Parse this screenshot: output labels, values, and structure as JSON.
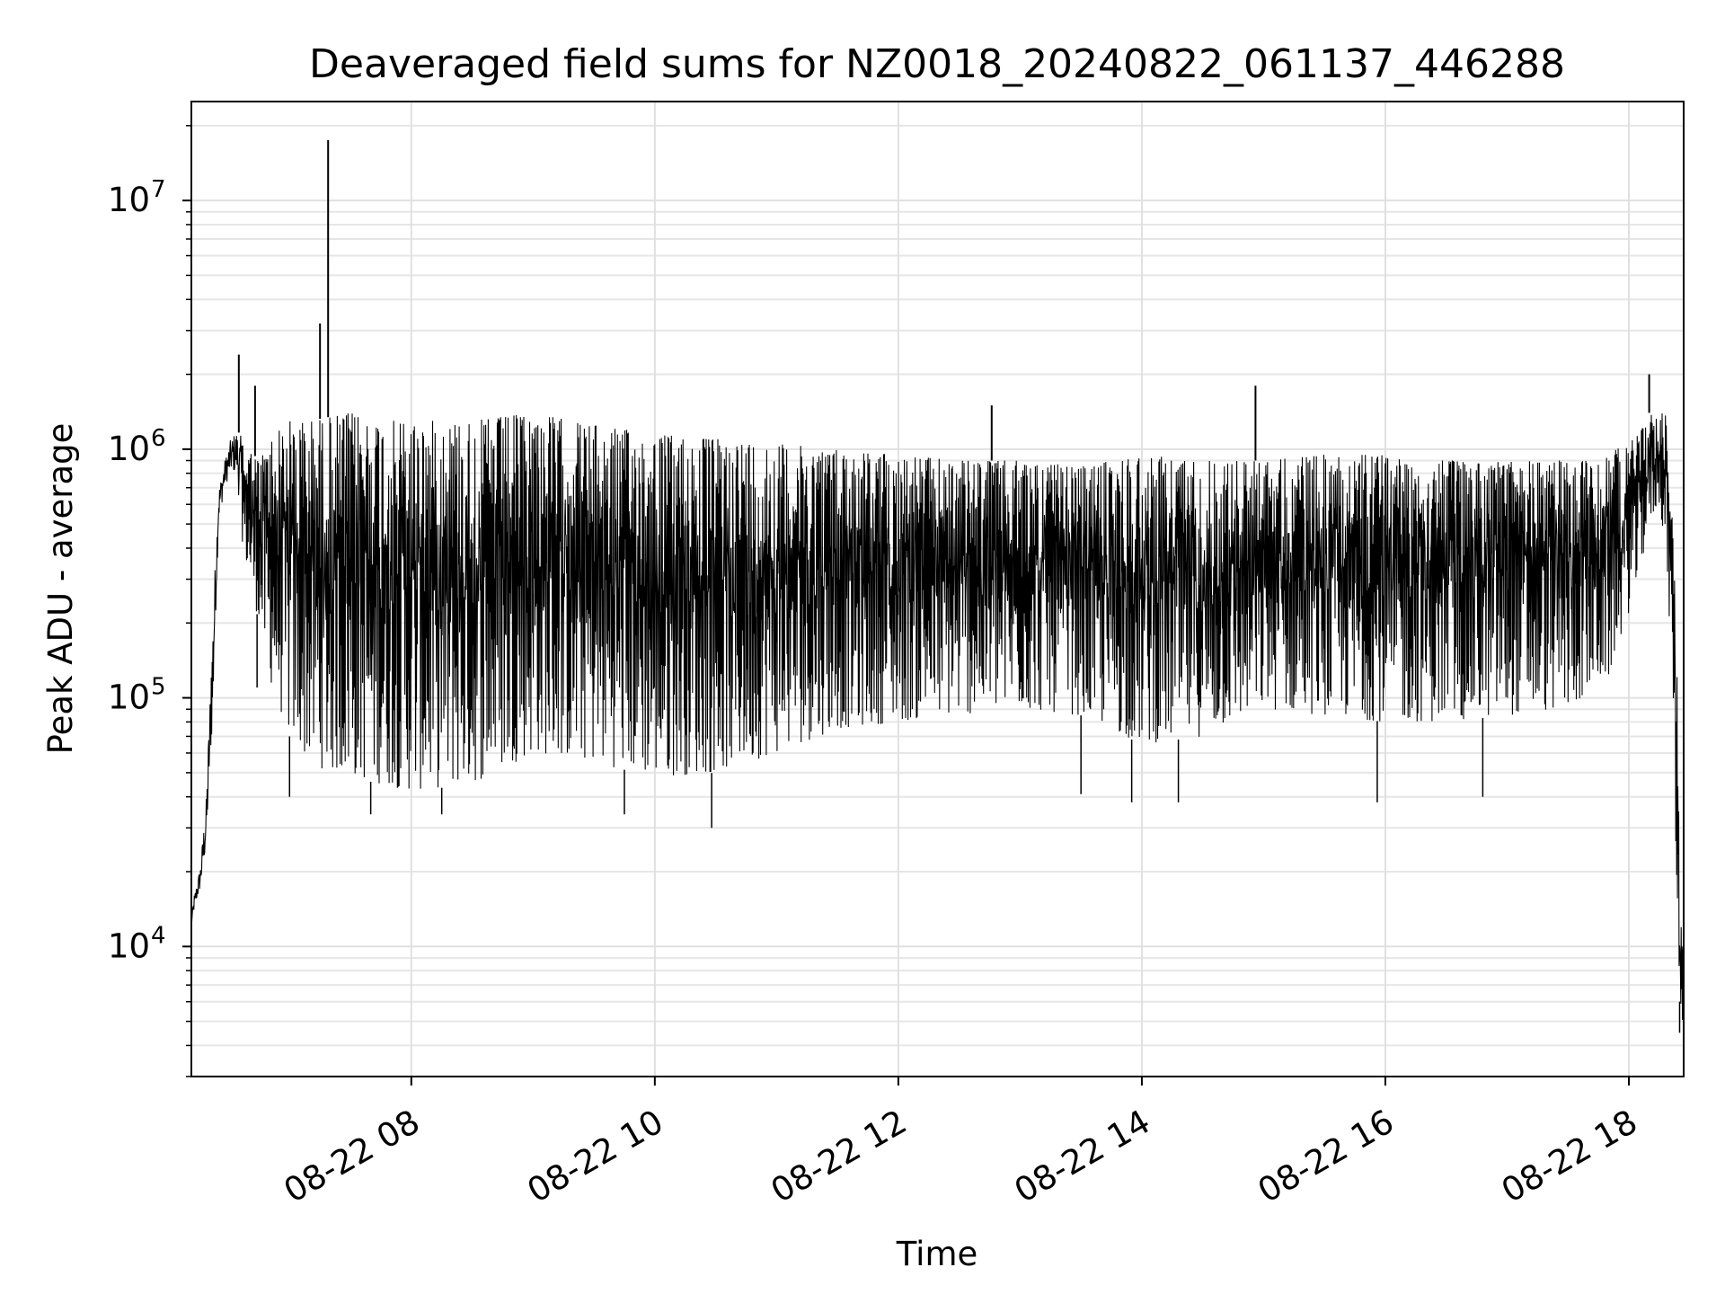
{
  "chart_data": {
    "type": "line",
    "title": "Deaveraged field sums for NZ0018_20240822_061137_446288",
    "xlabel": "Time",
    "ylabel": "Peak ADU - average",
    "yscale": "log",
    "grid": true,
    "line_color": "#000000",
    "xlim": [
      "2024-08-22T06:11:37",
      "2024-08-22T18:27:00"
    ],
    "ylim": [
      3000,
      25000000
    ],
    "x_ticks": [
      {
        "t": "2024-08-22T08:00",
        "label": "08-22 08"
      },
      {
        "t": "2024-08-22T10:00",
        "label": "08-22 10"
      },
      {
        "t": "2024-08-22T12:00",
        "label": "08-22 12"
      },
      {
        "t": "2024-08-22T14:00",
        "label": "08-22 14"
      },
      {
        "t": "2024-08-22T16:00",
        "label": "08-22 16"
      },
      {
        "t": "2024-08-22T18:00",
        "label": "08-22 18"
      }
    ],
    "y_ticks": [
      {
        "value": 10000,
        "base": "10",
        "exp": "4"
      },
      {
        "value": 100000,
        "base": "10",
        "exp": "5"
      },
      {
        "value": 1000000,
        "base": "10",
        "exp": "6"
      },
      {
        "value": 10000000,
        "base": "10",
        "exp": "7"
      }
    ],
    "series": [
      {
        "envelope": {
          "x": [
            "2024-08-22T06:11:37",
            "2024-08-22T06:13",
            "2024-08-22T06:16",
            "2024-08-22T06:19",
            "2024-08-22T06:22",
            "2024-08-22T06:25",
            "2024-08-22T06:28",
            "2024-08-22T06:31",
            "2024-08-22T06:34",
            "2024-08-22T06:37",
            "2024-08-22T06:40",
            "2024-08-22T06:45",
            "2024-08-22T06:50",
            "2024-08-22T06:55",
            "2024-08-22T07:00",
            "2024-08-22T07:10",
            "2024-08-22T07:20",
            "2024-08-22T07:30",
            "2024-08-22T07:45",
            "2024-08-22T08:00",
            "2024-08-22T08:30",
            "2024-08-22T09:00",
            "2024-08-22T09:30",
            "2024-08-22T10:00",
            "2024-08-22T10:30",
            "2024-08-22T11:00",
            "2024-08-22T11:30",
            "2024-08-22T12:00",
            "2024-08-22T12:30",
            "2024-08-22T13:00",
            "2024-08-22T13:30",
            "2024-08-22T14:00",
            "2024-08-22T14:30",
            "2024-08-22T15:00",
            "2024-08-22T15:30",
            "2024-08-22T16:00",
            "2024-08-22T16:30",
            "2024-08-22T17:00",
            "2024-08-22T17:30",
            "2024-08-22T17:50",
            "2024-08-22T18:05",
            "2024-08-22T18:10",
            "2024-08-22T18:15",
            "2024-08-22T18:18",
            "2024-08-22T18:20",
            "2024-08-22T18:22",
            "2024-08-22T18:24",
            "2024-08-22T18:25",
            "2024-08-22T18:26",
            "2024-08-22T18:27"
          ],
          "upper": [
            13000,
            16000,
            21000,
            40000,
            200000,
            700000,
            900000,
            1100000,
            1200000,
            1100000,
            1000000,
            900000,
            1100000,
            1200000,
            1300000,
            1300000,
            1350000,
            1400000,
            1300000,
            1300000,
            1300000,
            1400000,
            1250000,
            1150000,
            1100000,
            1050000,
            1000000,
            950000,
            900000,
            900000,
            850000,
            950000,
            900000,
            900000,
            950000,
            950000,
            900000,
            900000,
            900000,
            950000,
            1150000,
            1400000,
            1400000,
            1400000,
            900000,
            500000,
            100000,
            15000,
            12000,
            11000
          ],
          "lower": [
            12000,
            14000,
            17000,
            25000,
            80000,
            500000,
            700000,
            800000,
            800000,
            400000,
            300000,
            200000,
            120000,
            90000,
            70000,
            55000,
            50000,
            48000,
            45000,
            42000,
            45000,
            60000,
            55000,
            48000,
            50000,
            60000,
            75000,
            80000,
            85000,
            90000,
            85000,
            65000,
            70000,
            90000,
            85000,
            80000,
            80000,
            85000,
            90000,
            120000,
            300000,
            500000,
            600000,
            400000,
            200000,
            80000,
            10000,
            6000,
            5000,
            5000
          ]
        },
        "spikes": [
          {
            "t": "2024-08-22T06:35",
            "value": 2400000
          },
          {
            "t": "2024-08-22T06:43",
            "value": 1800000
          },
          {
            "t": "2024-08-22T07:15",
            "value": 3200000
          },
          {
            "t": "2024-08-22T07:19",
            "value": 17500000
          },
          {
            "t": "2024-08-22T12:46",
            "value": 1500000
          },
          {
            "t": "2024-08-22T14:56",
            "value": 1800000
          },
          {
            "t": "2024-08-22T18:10",
            "value": 2000000
          }
        ],
        "dips": [
          {
            "t": "2024-08-22T06:44",
            "value": 110000
          },
          {
            "t": "2024-08-22T07:00",
            "value": 40000
          },
          {
            "t": "2024-08-22T07:40",
            "value": 34000
          },
          {
            "t": "2024-08-22T08:15",
            "value": 34000
          },
          {
            "t": "2024-08-22T09:45",
            "value": 34000
          },
          {
            "t": "2024-08-22T10:28",
            "value": 30000
          },
          {
            "t": "2024-08-22T13:30",
            "value": 41000
          },
          {
            "t": "2024-08-22T13:55",
            "value": 38000
          },
          {
            "t": "2024-08-22T14:18",
            "value": 38000
          },
          {
            "t": "2024-08-22T15:56",
            "value": 38000
          },
          {
            "t": "2024-08-22T16:48",
            "value": 40000
          },
          {
            "t": "2024-08-22T18:25",
            "value": 4500
          }
        ]
      }
    ]
  }
}
